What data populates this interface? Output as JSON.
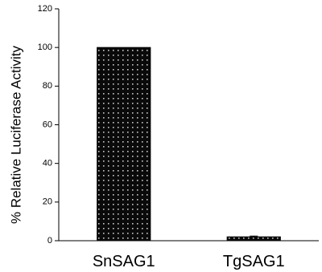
{
  "chart_data": {
    "type": "bar",
    "categories": [
      "SnSAG1",
      "TgSAG1"
    ],
    "values": [
      100,
      2
    ],
    "error": [
      0,
      0.4
    ],
    "title": "",
    "xlabel": "",
    "ylabel": "% Relative Luciferase Activity",
    "ylim": [
      0,
      120
    ],
    "yticks": [
      0,
      20,
      40,
      60,
      80,
      100,
      120
    ],
    "grid": false,
    "legend": false,
    "bar_fill": "dotted-black"
  }
}
